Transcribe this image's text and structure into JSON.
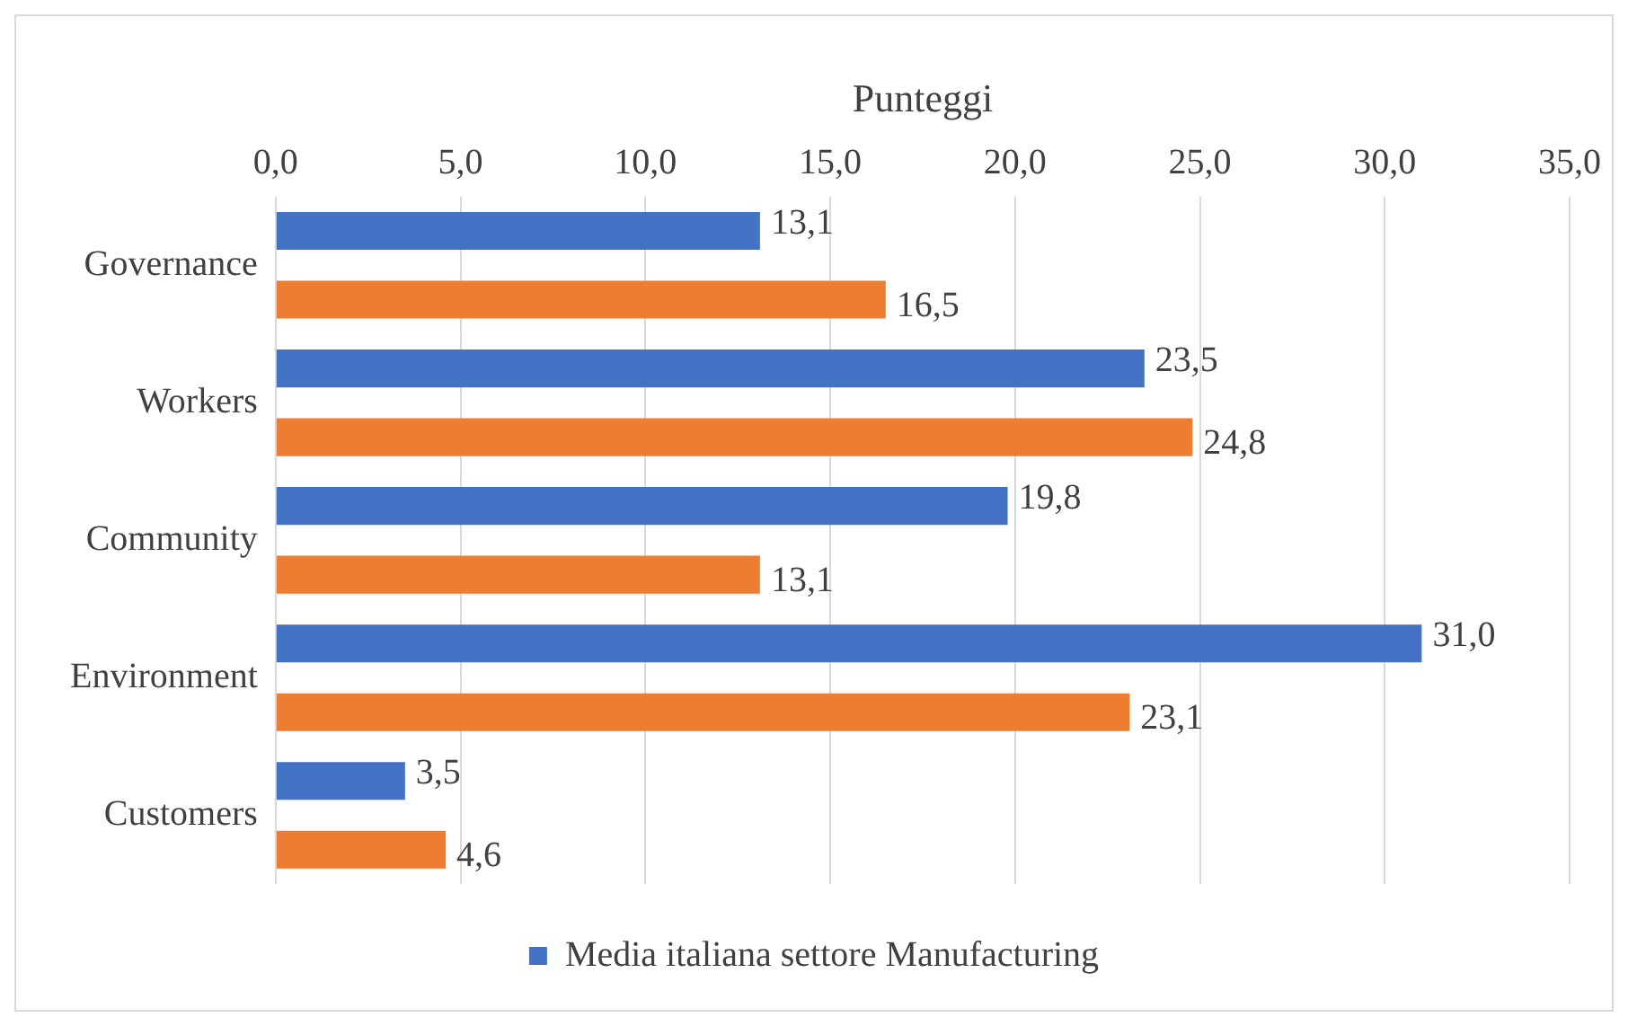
{
  "chart_data": {
    "type": "bar",
    "orientation": "horizontal",
    "xlabel": "Punteggi",
    "categories": [
      "Governance",
      "Workers",
      "Community",
      "Environment",
      "Customers"
    ],
    "series": [
      {
        "name": "Media italiana settore Manufacturing",
        "color": "#4472c4",
        "values": [
          13.1,
          23.5,
          19.8,
          31.0,
          3.5
        ],
        "value_labels": [
          "13,1",
          "23,5",
          "19,8",
          "31,0",
          "3,5"
        ]
      },
      {
        "color": "#ed7d31",
        "values": [
          16.5,
          24.8,
          13.1,
          23.1,
          4.6
        ],
        "value_labels": [
          "16,5",
          "24,8",
          "13,1",
          "23,1",
          "4,6"
        ]
      }
    ],
    "xlim": [
      0,
      35
    ],
    "xticks": [
      {
        "value": 0,
        "label": "0,0"
      },
      {
        "value": 5,
        "label": "5,0"
      },
      {
        "value": 10,
        "label": "10,0"
      },
      {
        "value": 15,
        "label": "15,0"
      },
      {
        "value": 20,
        "label": "20,0"
      },
      {
        "value": 25,
        "label": "25,0"
      },
      {
        "value": 30,
        "label": "30,0"
      },
      {
        "value": 35,
        "label": "35,0"
      }
    ],
    "grid": "x",
    "legend": "bottom"
  }
}
